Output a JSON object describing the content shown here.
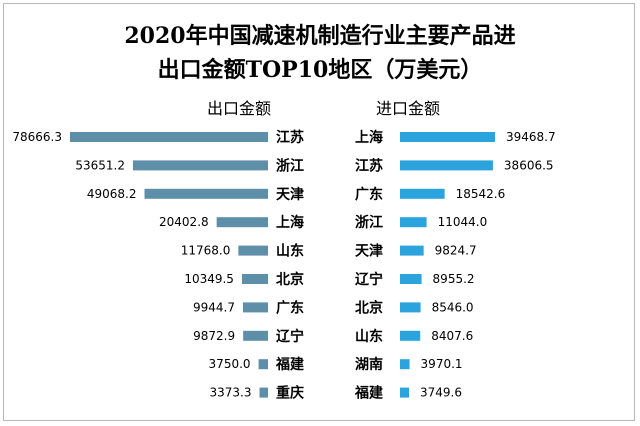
{
  "colors": {
    "export_bar": "#5e8fa8",
    "import_bar": "#2ba3dc"
  },
  "chart_data": {
    "type": "bar",
    "title": "2020年中国减速机制造行业主要产品进出口金额TOP10地区（万美元）",
    "title_line1": "2020年中国减速机制造行业主要产品进",
    "title_line2": "出口金额TOP10地区（万美元）",
    "series": [
      {
        "name": "出口金额",
        "categories": [
          "江苏",
          "浙江",
          "天津",
          "上海",
          "山东",
          "北京",
          "广东",
          "辽宁",
          "福建",
          "重庆"
        ],
        "values": [
          78666.3,
          53651.2,
          49068.2,
          20402.8,
          11768.0,
          10349.5,
          9944.7,
          9872.9,
          3750.0,
          3373.3
        ],
        "labels": [
          "78666.3",
          "53651.2",
          "49068.2",
          "20402.8",
          "11768.0",
          "10349.5",
          "9944.7",
          "9872.9",
          "3750.0",
          "3373.3"
        ]
      },
      {
        "name": "进口金额",
        "categories": [
          "上海",
          "江苏",
          "广东",
          "浙江",
          "天津",
          "辽宁",
          "北京",
          "山东",
          "湖南",
          "福建"
        ],
        "values": [
          39468.7,
          38606.5,
          18542.6,
          11044.0,
          9824.7,
          8955.2,
          8546.0,
          8407.6,
          3970.1,
          3749.6
        ],
        "labels": [
          "39468.7",
          "38606.5",
          "18542.6",
          "11044.0",
          "9824.7",
          "8955.2",
          "8546.0",
          "8407.6",
          "3970.1",
          "3749.6"
        ]
      }
    ],
    "grid": false,
    "legend": "none"
  }
}
